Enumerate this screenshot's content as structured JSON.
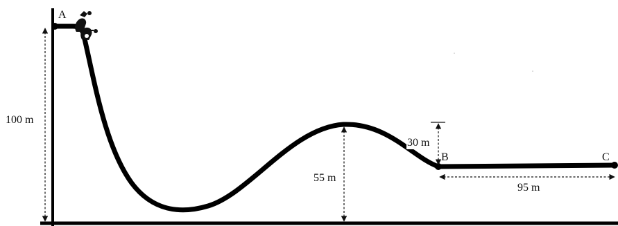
{
  "points": {
    "a": "A",
    "b": "B",
    "c": "C"
  },
  "measurements": {
    "total_height": "100 m",
    "hill_height": "55 m",
    "drop_height": "30 m",
    "flat_length": "95 m"
  },
  "colors": {
    "track": "#000000",
    "background": "#ffffff"
  }
}
